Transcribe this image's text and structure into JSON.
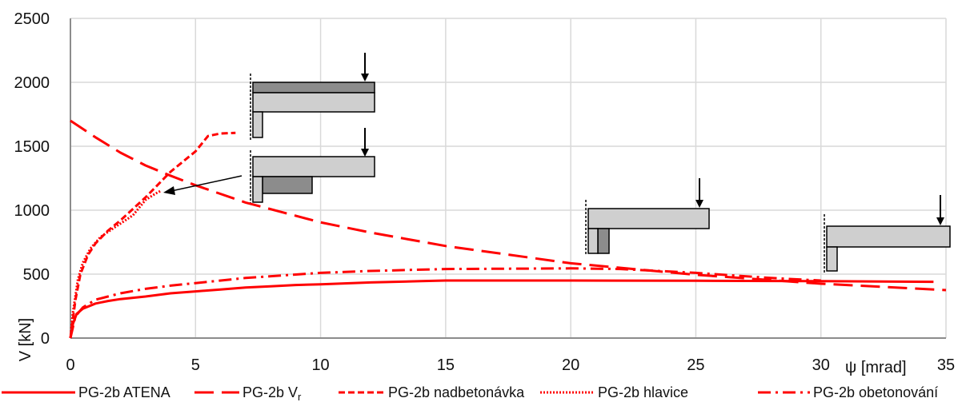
{
  "chart_data": {
    "type": "line",
    "xlabel": "ψ [mrad]",
    "ylabel": "V [kN]",
    "xlim": [
      0,
      35
    ],
    "ylim": [
      0,
      2500
    ],
    "x_ticks": [
      0,
      5,
      10,
      15,
      20,
      25,
      30,
      35
    ],
    "y_ticks": [
      0,
      500,
      1000,
      1500,
      2000,
      2500
    ],
    "x_tick_labels": [
      "0",
      "5",
      "10",
      "15",
      "20",
      "25",
      "30",
      "35"
    ],
    "y_tick_labels": [
      "0",
      "500",
      "1000",
      "1500",
      "2000",
      "2500"
    ],
    "grid": true,
    "legend_position": "bottom",
    "colors": {
      "series": "#ff0000",
      "grid": "#d9d9d9",
      "axis": "#8c8c8c",
      "schematic_light": "#cfcfcf",
      "schematic_dark": "#8c8c8c",
      "arrow": "#000000"
    },
    "series": [
      {
        "name": "PG-2b ATENA",
        "style": "solid",
        "points": [
          [
            0,
            0
          ],
          [
            0.1,
            110
          ],
          [
            0.25,
            190
          ],
          [
            0.5,
            230
          ],
          [
            1,
            270
          ],
          [
            1.5,
            290
          ],
          [
            2,
            305
          ],
          [
            3,
            325
          ],
          [
            4,
            350
          ],
          [
            5,
            365
          ],
          [
            6,
            380
          ],
          [
            7,
            395
          ],
          [
            8,
            405
          ],
          [
            9,
            415
          ],
          [
            10,
            420
          ],
          [
            12,
            435
          ],
          [
            14,
            445
          ],
          [
            15,
            450
          ],
          [
            20,
            450
          ],
          [
            25,
            448
          ],
          [
            30,
            445
          ],
          [
            34.5,
            440
          ]
        ]
      },
      {
        "name": "PG-2b V_r",
        "style": "long-dash",
        "points": [
          [
            0,
            1700
          ],
          [
            1,
            1570
          ],
          [
            2,
            1450
          ],
          [
            3,
            1350
          ],
          [
            4,
            1270
          ],
          [
            5,
            1195
          ],
          [
            7,
            1060
          ],
          [
            10,
            905
          ],
          [
            12,
            825
          ],
          [
            15,
            720
          ],
          [
            20,
            585
          ],
          [
            25,
            495
          ],
          [
            30,
            425
          ],
          [
            35,
            375
          ]
        ]
      },
      {
        "name": "PG-2b nadbetonávka",
        "style": "short-dash",
        "points": [
          [
            0,
            0
          ],
          [
            0.2,
            300
          ],
          [
            0.4,
            500
          ],
          [
            0.7,
            650
          ],
          [
            1,
            740
          ],
          [
            1.5,
            840
          ],
          [
            2,
            920
          ],
          [
            3,
            1100
          ],
          [
            4,
            1300
          ],
          [
            5,
            1460
          ],
          [
            5.5,
            1580
          ],
          [
            6,
            1600
          ],
          [
            6.6,
            1605
          ]
        ]
      },
      {
        "name": "PG-2b hlavice",
        "style": "dotted",
        "points": [
          [
            0,
            0
          ],
          [
            0.1,
            200
          ],
          [
            0.3,
            460
          ],
          [
            0.5,
            590
          ],
          [
            0.8,
            700
          ],
          [
            1.2,
            790
          ],
          [
            1.8,
            870
          ],
          [
            2.5,
            960
          ],
          [
            3,
            1080
          ],
          [
            3.4,
            1130
          ],
          [
            3.6,
            1150
          ]
        ]
      },
      {
        "name": "PG-2b obetonování",
        "style": "dash-dot",
        "points": [
          [
            0,
            0
          ],
          [
            0.2,
            170
          ],
          [
            0.5,
            240
          ],
          [
            1,
            300
          ],
          [
            2,
            350
          ],
          [
            3,
            385
          ],
          [
            4,
            410
          ],
          [
            5,
            430
          ],
          [
            7,
            470
          ],
          [
            10,
            510
          ],
          [
            12,
            525
          ],
          [
            15,
            540
          ],
          [
            20,
            545
          ],
          [
            22,
            540
          ],
          [
            25,
            510
          ],
          [
            28,
            470
          ],
          [
            30,
            450
          ]
        ]
      }
    ]
  }
}
